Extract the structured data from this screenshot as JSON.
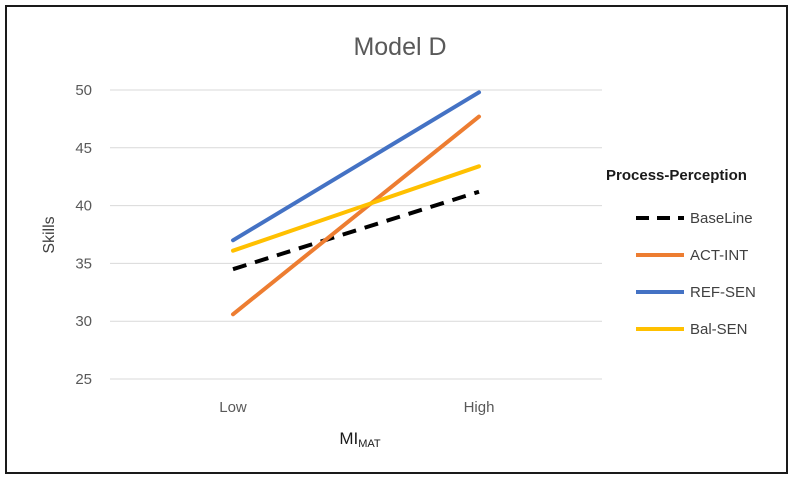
{
  "chart_data": {
    "type": "line",
    "title": "Model D",
    "xlabel": "MI",
    "xlabel_subscript": "MAT",
    "ylabel": "Skills",
    "categories": [
      "Low",
      "High"
    ],
    "ylim": [
      25,
      50
    ],
    "yticks": [
      25,
      30,
      35,
      40,
      45,
      50
    ],
    "grid": true,
    "legend_title": "Process-Perception",
    "legend_position": "right",
    "series": [
      {
        "name": "BaseLine",
        "values": [
          34.5,
          41.2
        ],
        "color": "#000000",
        "dashed": true
      },
      {
        "name": "ACT-INT",
        "values": [
          30.6,
          47.7
        ],
        "color": "#ED7D31",
        "dashed": false
      },
      {
        "name": "REF-SEN",
        "values": [
          37.0,
          49.8
        ],
        "color": "#4472C4",
        "dashed": false
      },
      {
        "name": "Bal-SEN",
        "values": [
          36.1,
          43.4
        ],
        "color": "#FFC000",
        "dashed": false
      }
    ]
  }
}
